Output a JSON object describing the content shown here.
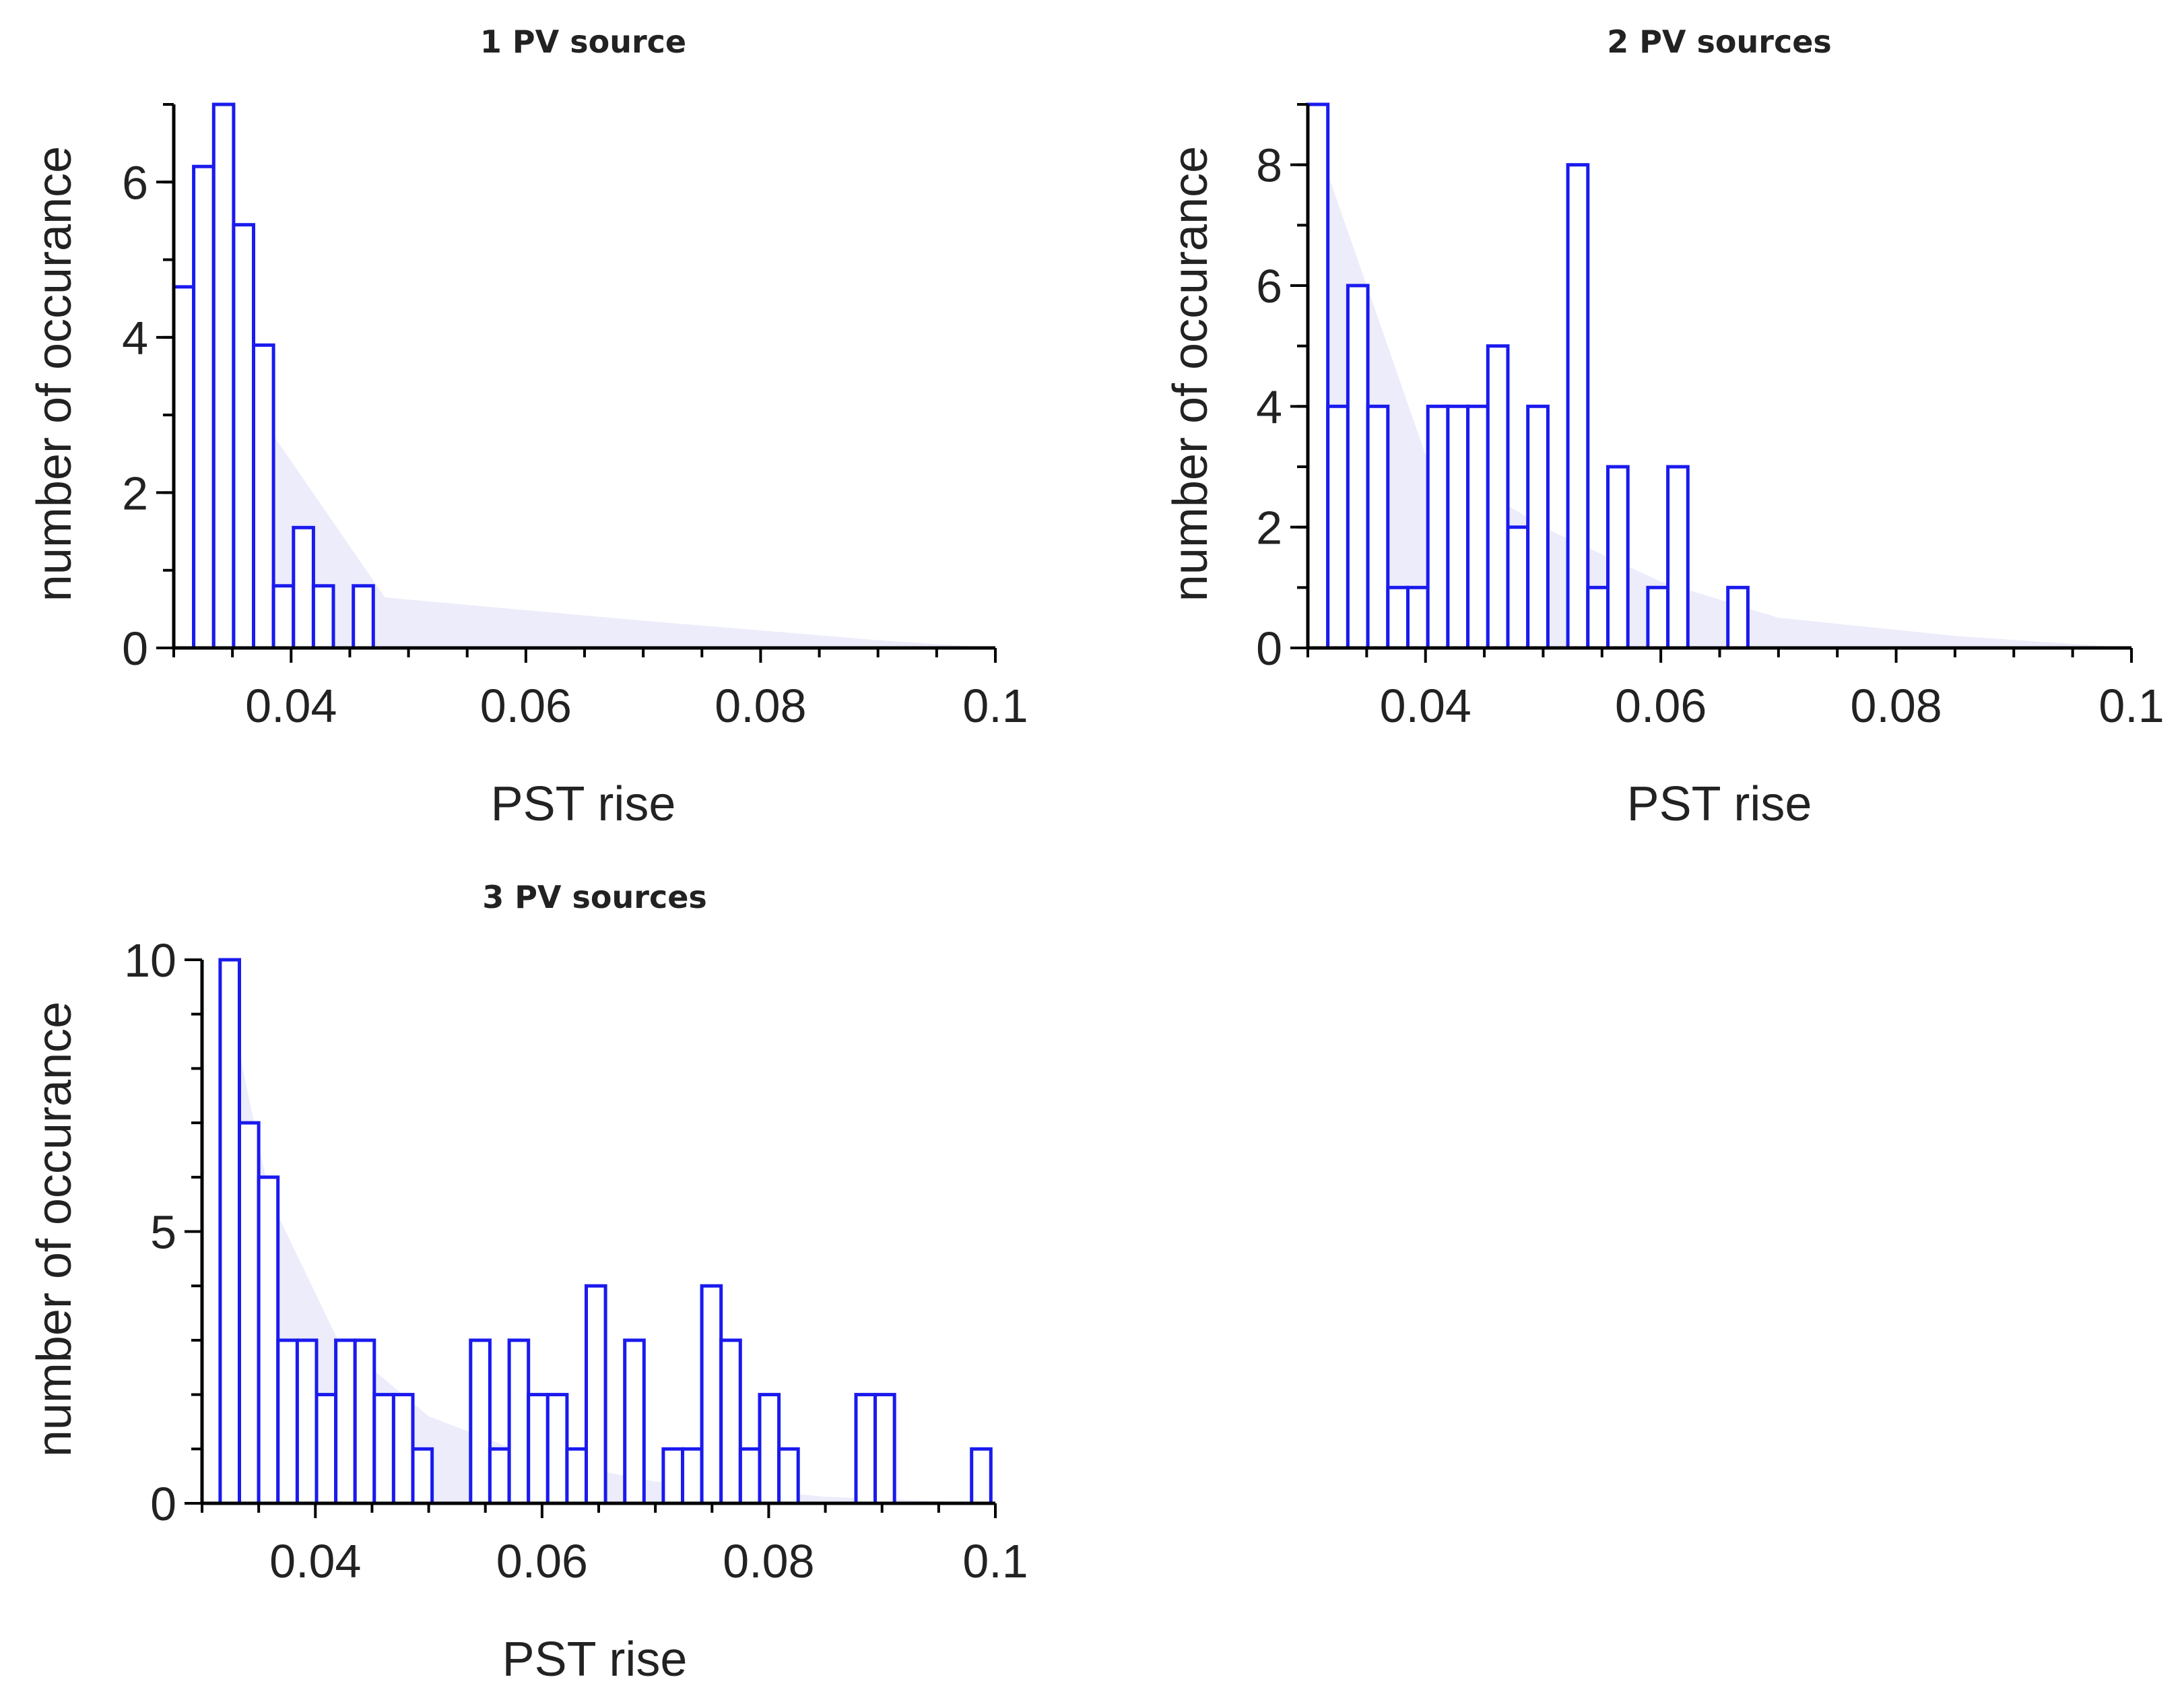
{
  "figure": {
    "bar_color": "#1a1aee",
    "fill_color": "#ececfb"
  },
  "chart_data": [
    {
      "type": "bar",
      "title": "1 PV source",
      "xlabel": "PST rise",
      "ylabel": "number of occurance",
      "xlim": [
        0.03,
        0.1
      ],
      "ylim": [
        0,
        7
      ],
      "xticks": [
        "0.04",
        "0.06",
        "0.08",
        "0.1"
      ],
      "yticks": [
        "0",
        "2",
        "4",
        "6"
      ],
      "bin_width": 0.0017,
      "bins": [
        {
          "x0": 0.03,
          "value": 4.65
        },
        {
          "x0": 0.0317,
          "value": 6.2
        },
        {
          "x0": 0.0334,
          "value": 7.0
        },
        {
          "x0": 0.0351,
          "value": 5.45
        },
        {
          "x0": 0.0368,
          "value": 3.9
        },
        {
          "x0": 0.0385,
          "value": 0.8
        },
        {
          "x0": 0.0402,
          "value": 1.55
        },
        {
          "x0": 0.0419,
          "value": 0.8
        },
        {
          "x0": 0.0436,
          "value": 0
        },
        {
          "x0": 0.0453,
          "value": 0.8
        }
      ],
      "fit_curve": [
        [
          0.03,
          4.6
        ],
        [
          0.048,
          0.65
        ],
        [
          0.07,
          0.35
        ],
        [
          0.09,
          0.1
        ],
        [
          0.1,
          0.0
        ]
      ]
    },
    {
      "type": "bar",
      "title": "2 PV sources",
      "xlabel": "PST rise",
      "ylabel": "number of occurance",
      "xlim": [
        0.03,
        0.1
      ],
      "ylim": [
        0,
        9
      ],
      "xticks": [
        "0.04",
        "0.06",
        "0.08",
        "0.1"
      ],
      "yticks": [
        "0",
        "2",
        "4",
        "6",
        "8"
      ],
      "bin_width": 0.0017,
      "bins": [
        {
          "x0": 0.03,
          "value": 9
        },
        {
          "x0": 0.0317,
          "value": 4
        },
        {
          "x0": 0.0334,
          "value": 6
        },
        {
          "x0": 0.0351,
          "value": 4
        },
        {
          "x0": 0.0368,
          "value": 1
        },
        {
          "x0": 0.0385,
          "value": 1
        },
        {
          "x0": 0.0402,
          "value": 4
        },
        {
          "x0": 0.0419,
          "value": 4
        },
        {
          "x0": 0.0436,
          "value": 4
        },
        {
          "x0": 0.0453,
          "value": 5
        },
        {
          "x0": 0.047,
          "value": 2
        },
        {
          "x0": 0.0487,
          "value": 4
        },
        {
          "x0": 0.0504,
          "value": 0
        },
        {
          "x0": 0.0521,
          "value": 8
        },
        {
          "x0": 0.0538,
          "value": 1
        },
        {
          "x0": 0.0555,
          "value": 3
        },
        {
          "x0": 0.0572,
          "value": 0
        },
        {
          "x0": 0.0589,
          "value": 1
        },
        {
          "x0": 0.0606,
          "value": 3
        },
        {
          "x0": 0.0623,
          "value": 0
        },
        {
          "x0": 0.064,
          "value": 0
        },
        {
          "x0": 0.0657,
          "value": 1
        }
      ],
      "fit_curve": [
        [
          0.03,
          8.8
        ],
        [
          0.04,
          3.2
        ],
        [
          0.05,
          2.0
        ],
        [
          0.06,
          1.1
        ],
        [
          0.07,
          0.5
        ],
        [
          0.085,
          0.2
        ],
        [
          0.1,
          0.0
        ]
      ]
    },
    {
      "type": "bar",
      "title": "3 PV sources",
      "xlabel": "PST rise",
      "ylabel": "number of occurance",
      "xlim": [
        0.03,
        0.1
      ],
      "ylim": [
        0,
        10
      ],
      "xticks": [
        "0.04",
        "0.06",
        "0.08",
        "0.1"
      ],
      "yticks": [
        "0",
        "5",
        "10"
      ],
      "bin_width": 0.0017,
      "bins": [
        {
          "x0": 0.0316,
          "value": 10
        },
        {
          "x0": 0.0333,
          "value": 7
        },
        {
          "x0": 0.035,
          "value": 6
        },
        {
          "x0": 0.0367,
          "value": 3
        },
        {
          "x0": 0.0384,
          "value": 3
        },
        {
          "x0": 0.0401,
          "value": 2
        },
        {
          "x0": 0.0418,
          "value": 3
        },
        {
          "x0": 0.0435,
          "value": 3
        },
        {
          "x0": 0.0452,
          "value": 2
        },
        {
          "x0": 0.0469,
          "value": 2
        },
        {
          "x0": 0.0486,
          "value": 1
        },
        {
          "x0": 0.0503,
          "value": 0
        },
        {
          "x0": 0.052,
          "value": 0
        },
        {
          "x0": 0.0537,
          "value": 3
        },
        {
          "x0": 0.0554,
          "value": 1
        },
        {
          "x0": 0.0571,
          "value": 3
        },
        {
          "x0": 0.0588,
          "value": 2
        },
        {
          "x0": 0.0605,
          "value": 2
        },
        {
          "x0": 0.0622,
          "value": 1
        },
        {
          "x0": 0.0639,
          "value": 4
        },
        {
          "x0": 0.0656,
          "value": 0
        },
        {
          "x0": 0.0673,
          "value": 3
        },
        {
          "x0": 0.069,
          "value": 0
        },
        {
          "x0": 0.0707,
          "value": 1
        },
        {
          "x0": 0.0724,
          "value": 1
        },
        {
          "x0": 0.0741,
          "value": 4
        },
        {
          "x0": 0.0758,
          "value": 3
        },
        {
          "x0": 0.0775,
          "value": 1
        },
        {
          "x0": 0.0792,
          "value": 2
        },
        {
          "x0": 0.0809,
          "value": 1
        },
        {
          "x0": 0.0826,
          "value": 0
        },
        {
          "x0": 0.0843,
          "value": 0
        },
        {
          "x0": 0.086,
          "value": 0
        },
        {
          "x0": 0.0877,
          "value": 2
        },
        {
          "x0": 0.0894,
          "value": 2
        },
        {
          "x0": 0.0911,
          "value": 0
        },
        {
          "x0": 0.0928,
          "value": 0
        },
        {
          "x0": 0.0945,
          "value": 0
        },
        {
          "x0": 0.0962,
          "value": 0
        },
        {
          "x0": 0.0979,
          "value": 1
        }
      ],
      "fit_curve": [
        [
          0.0316,
          10.0
        ],
        [
          0.036,
          5.6
        ],
        [
          0.042,
          3.0
        ],
        [
          0.05,
          1.6
        ],
        [
          0.06,
          0.8
        ],
        [
          0.07,
          0.4
        ],
        [
          0.085,
          0.12
        ],
        [
          0.1,
          0.0
        ]
      ]
    }
  ]
}
